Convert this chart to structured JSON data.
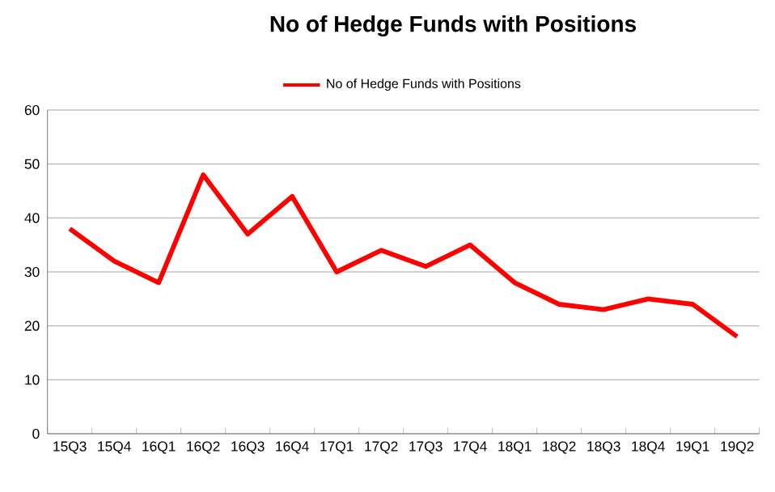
{
  "chart_data": {
    "type": "line",
    "title": "No of Hedge Funds with Positions",
    "categories": [
      "15Q3",
      "15Q4",
      "16Q1",
      "16Q2",
      "16Q3",
      "16Q4",
      "17Q1",
      "17Q2",
      "17Q3",
      "17Q4",
      "18Q1",
      "18Q2",
      "18Q3",
      "18Q4",
      "19Q1",
      "19Q2"
    ],
    "series": [
      {
        "name": "No of Hedge Funds with Positions",
        "color": "#ff0000",
        "values": [
          38,
          32,
          28,
          48,
          37,
          44,
          30,
          34,
          31,
          35,
          28,
          24,
          23,
          25,
          24,
          18
        ]
      }
    ],
    "ylim": [
      0,
      60
    ],
    "yticks": [
      0,
      10,
      20,
      30,
      40,
      50,
      60
    ],
    "grid": "y",
    "legend": "top",
    "marker": "none",
    "line_style": "solid"
  }
}
